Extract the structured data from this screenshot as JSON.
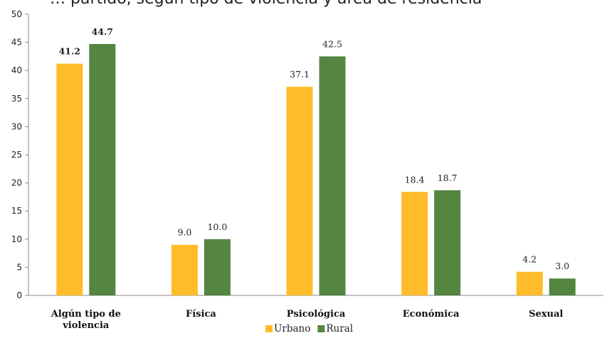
{
  "page_title": "… partido, según tipo de violencia y área de residencia",
  "chart_data": {
    "type": "bar",
    "title": "",
    "xlabel": "",
    "ylabel": "",
    "ylim": [
      0,
      50
    ],
    "yticks": [
      "0",
      "5",
      "10",
      "15",
      "20",
      "25",
      "30",
      "35",
      "40",
      "45",
      "50"
    ],
    "grid": false,
    "legend_position": "bottom",
    "categories": [
      [
        "Algún tipo de",
        "violencia"
      ],
      [
        "Física"
      ],
      [
        "Psicológica"
      ],
      [
        "Económica"
      ],
      [
        "Sexual"
      ]
    ],
    "series": [
      {
        "name": "Urbano",
        "color": "#FFBC2A",
        "values": [
          41.2,
          9.0,
          37.1,
          18.4,
          4.2
        ],
        "labels": [
          "41.2",
          "9.0",
          "37.1",
          "18.4",
          "4.2"
        ]
      },
      {
        "name": "Rural",
        "color": "#548541",
        "values": [
          44.7,
          10.0,
          42.5,
          18.7,
          3.0
        ],
        "labels": [
          "44.7",
          "10.0",
          "42.5",
          "18.7",
          "3.0"
        ]
      }
    ],
    "bold_label_category_index": 0
  }
}
